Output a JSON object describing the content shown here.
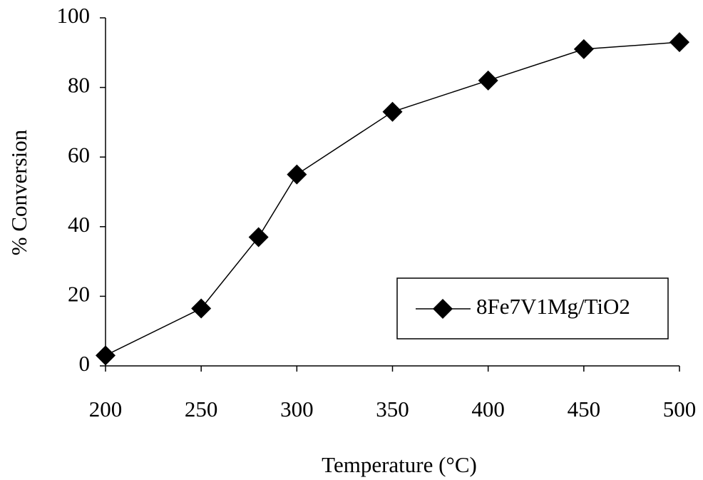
{
  "chart_data": {
    "type": "line",
    "x_label": "Temperature (°C)",
    "y_label": "% Conversion",
    "x": [
      200,
      250,
      280,
      300,
      350,
      400,
      450,
      500
    ],
    "series": [
      {
        "name": "8Fe7V1Mg/TiO2",
        "color": "#000000",
        "values": [
          3,
          16.5,
          37,
          55,
          73,
          82,
          91,
          93
        ]
      }
    ],
    "xlim": [
      200,
      500
    ],
    "xticks": [
      200,
      250,
      300,
      350,
      400,
      450,
      500
    ],
    "ylim": [
      0,
      100
    ],
    "yticks": [
      0,
      20,
      40,
      60,
      80,
      100
    ],
    "grid": false,
    "legend": "lower right",
    "marker": "diamond"
  }
}
